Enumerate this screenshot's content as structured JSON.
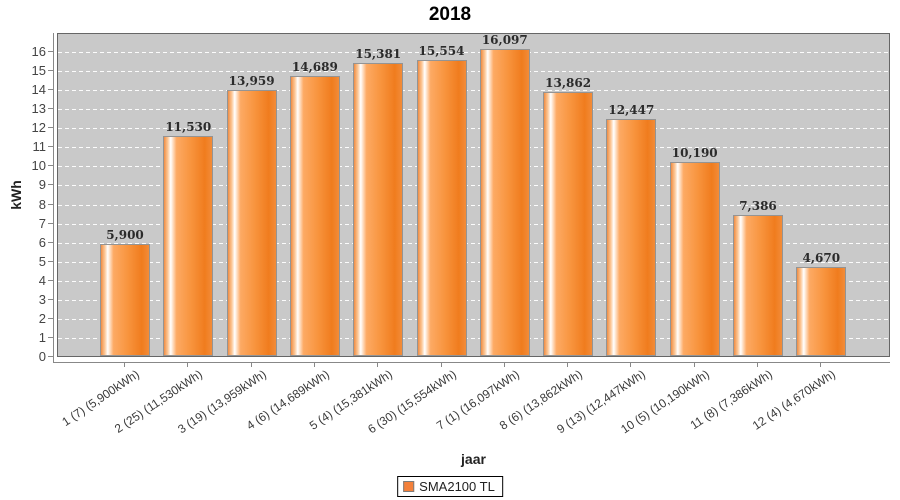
{
  "title": "2018",
  "y_axis": {
    "label": "kWh"
  },
  "x_axis": {
    "label": "jaar"
  },
  "legend": {
    "label": "SMA2100 TL",
    "swatch_color": "#f4803a"
  },
  "colors": {
    "plot_background": "#c9c9c9",
    "plot_border": "#666666",
    "gridline": "#ffffff",
    "axis": "#888888",
    "bar_main": "#f58220",
    "bar_highlight": "#ffffff",
    "bar_shadow": "#f07c1e",
    "bar_border": "#949494",
    "value_label_text": "#2b2b2b",
    "tick_label_text": "#3a3a3a"
  },
  "chart_data": {
    "type": "bar",
    "title": "2018",
    "xlabel": "jaar",
    "ylabel": "kWh",
    "ylim": [
      0,
      16
    ],
    "y_ticks": [
      0,
      1,
      2,
      3,
      4,
      5,
      6,
      7,
      8,
      9,
      10,
      11,
      12,
      13,
      14,
      15,
      16
    ],
    "grid": true,
    "grid_style": "white dashed horizontal on gray plot background",
    "legend_position": "bottom-center",
    "categories": [
      "1 (7) (5,900kWh)",
      "2 (25) (11,530kWh)",
      "3 (19) (13,959kWh)",
      "4 (6) (14,689kWh)",
      "5 (4) (15,381kWh)",
      "6 (30) (15,554kWh)",
      "7 (1) (16,097kWh)",
      "8 (6) (13,862kWh)",
      "9 (13) (12,447kWh)",
      "10 (5) (10,190kWh)",
      "11 (8) (7,386kWh)",
      "12 (4) (4,670kWh)"
    ],
    "series": [
      {
        "name": "SMA2100 TL",
        "values": [
          5.9,
          11.53,
          13.959,
          14.689,
          15.381,
          15.554,
          16.097,
          13.862,
          12.447,
          10.19,
          7.386,
          4.67
        ]
      }
    ],
    "bar_value_labels": [
      "5,900",
      "11,530",
      "13,959",
      "14,689",
      "15,381",
      "15,554",
      "16,097",
      "13,862",
      "12,447",
      "10,190",
      "7,386",
      "4,670"
    ]
  }
}
